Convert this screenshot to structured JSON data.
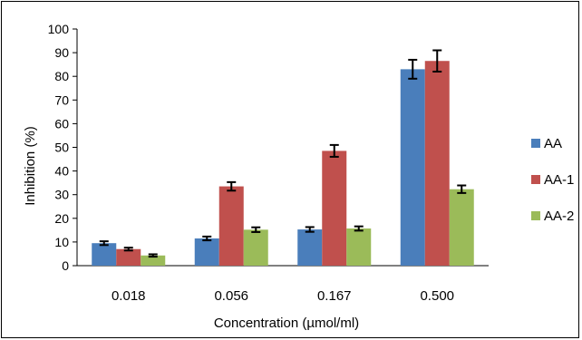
{
  "chart_data": {
    "type": "bar",
    "title": "",
    "xlabel": "Concentration (µmol/ml)",
    "ylabel": "Inhibition (%)",
    "ylim": [
      0,
      100
    ],
    "yticks": [
      "0",
      "10",
      "20",
      "30",
      "40",
      "50",
      "60",
      "70",
      "80",
      "90",
      "100"
    ],
    "categories": [
      "0.018",
      "0.056",
      "0.167",
      "0.500"
    ],
    "series": [
      {
        "name": "AA",
        "color": "#4a7ebb",
        "values": [
          9.5,
          11.5,
          15.3,
          83.0
        ],
        "errors": [
          0.8,
          0.8,
          1.0,
          4.0
        ]
      },
      {
        "name": "AA-1",
        "color": "#c0504d",
        "values": [
          7.0,
          33.5,
          48.5,
          86.5
        ],
        "errors": [
          0.6,
          1.8,
          2.5,
          4.5
        ]
      },
      {
        "name": "AA-2",
        "color": "#9bbb59",
        "values": [
          4.3,
          15.2,
          15.7,
          32.3
        ],
        "errors": [
          0.5,
          1.0,
          0.9,
          1.6
        ]
      }
    ],
    "legend_position": "right",
    "grid": false,
    "error_bars": true
  }
}
